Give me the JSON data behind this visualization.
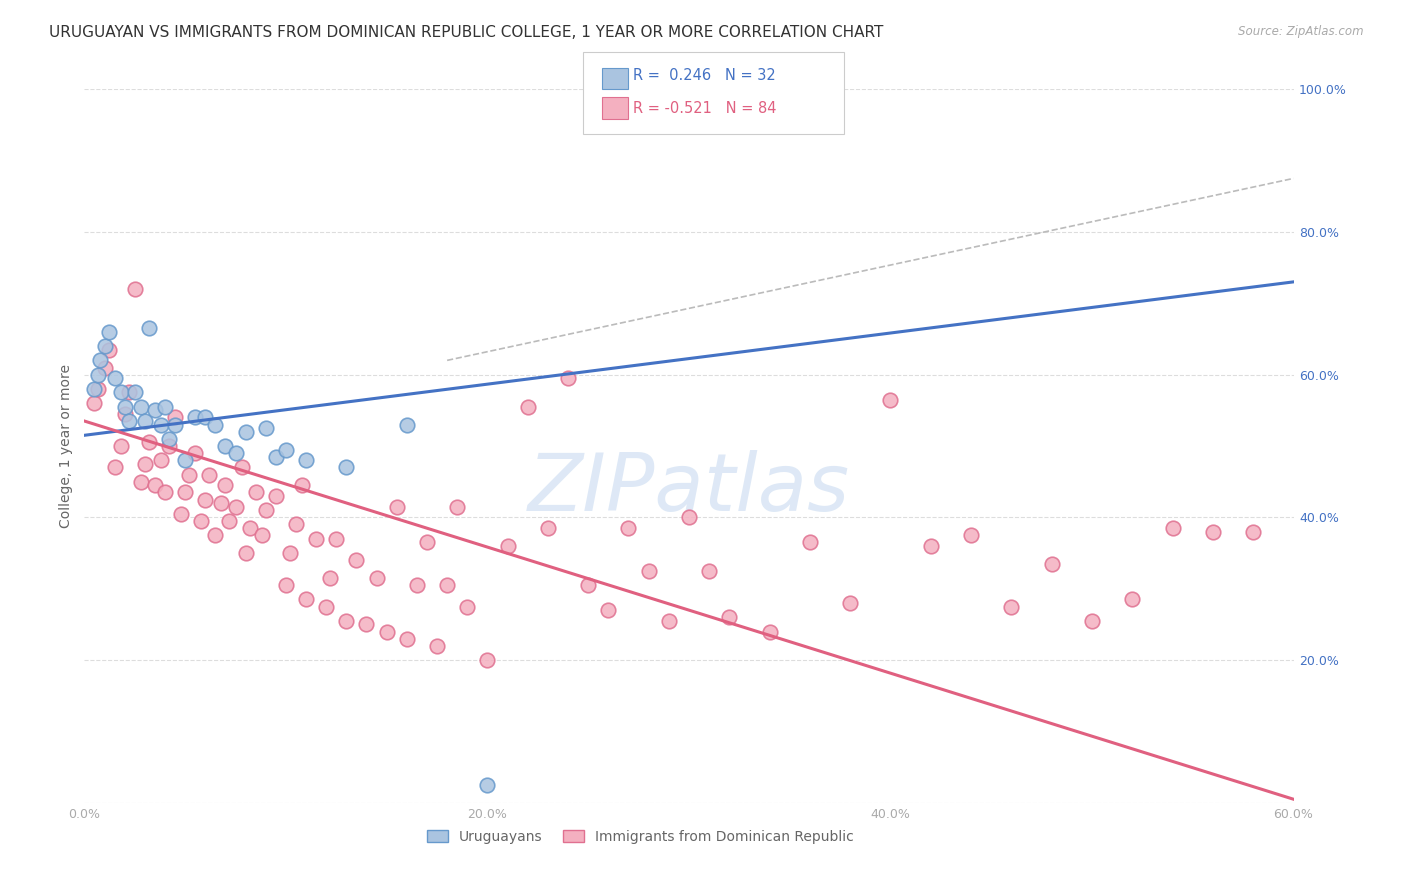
{
  "title": "URUGUAYAN VS IMMIGRANTS FROM DOMINICAN REPUBLIC COLLEGE, 1 YEAR OR MORE CORRELATION CHART",
  "source": "Source: ZipAtlas.com",
  "ylabel": "College, 1 year or more",
  "xlim": [
    0.0,
    0.6
  ],
  "ylim": [
    0.0,
    1.0
  ],
  "xticks": [
    0.0,
    0.1,
    0.2,
    0.3,
    0.4,
    0.5,
    0.6
  ],
  "yticks": [
    0.0,
    0.2,
    0.4,
    0.6,
    0.8,
    1.0
  ],
  "xtick_labels": [
    "0.0%",
    "",
    "20.0%",
    "",
    "40.0%",
    "",
    "60.0%"
  ],
  "ytick_labels_right": [
    "",
    "20.0%",
    "40.0%",
    "60.0%",
    "80.0%",
    "100.0%"
  ],
  "blue_R": "0.246",
  "blue_N": "32",
  "pink_R": "-0.521",
  "pink_N": "84",
  "blue_scatter_x": [
    0.005,
    0.007,
    0.008,
    0.01,
    0.012,
    0.015,
    0.018,
    0.02,
    0.022,
    0.025,
    0.028,
    0.03,
    0.032,
    0.035,
    0.038,
    0.04,
    0.042,
    0.045,
    0.05,
    0.055,
    0.06,
    0.065,
    0.07,
    0.075,
    0.08,
    0.09,
    0.095,
    0.1,
    0.11,
    0.13,
    0.16,
    0.2
  ],
  "blue_scatter_y": [
    0.58,
    0.6,
    0.62,
    0.64,
    0.66,
    0.595,
    0.575,
    0.555,
    0.535,
    0.575,
    0.555,
    0.535,
    0.665,
    0.55,
    0.53,
    0.555,
    0.51,
    0.53,
    0.48,
    0.54,
    0.54,
    0.53,
    0.5,
    0.49,
    0.52,
    0.525,
    0.485,
    0.495,
    0.48,
    0.47,
    0.53,
    0.025
  ],
  "pink_scatter_x": [
    0.005,
    0.007,
    0.01,
    0.012,
    0.015,
    0.018,
    0.02,
    0.022,
    0.025,
    0.028,
    0.03,
    0.032,
    0.035,
    0.038,
    0.04,
    0.042,
    0.045,
    0.048,
    0.05,
    0.052,
    0.055,
    0.058,
    0.06,
    0.062,
    0.065,
    0.068,
    0.07,
    0.072,
    0.075,
    0.078,
    0.08,
    0.082,
    0.085,
    0.088,
    0.09,
    0.095,
    0.1,
    0.102,
    0.105,
    0.108,
    0.11,
    0.115,
    0.12,
    0.122,
    0.125,
    0.13,
    0.135,
    0.14,
    0.145,
    0.15,
    0.155,
    0.16,
    0.165,
    0.17,
    0.175,
    0.18,
    0.185,
    0.19,
    0.2,
    0.21,
    0.22,
    0.23,
    0.24,
    0.25,
    0.26,
    0.27,
    0.28,
    0.29,
    0.3,
    0.31,
    0.32,
    0.34,
    0.36,
    0.38,
    0.4,
    0.42,
    0.44,
    0.46,
    0.48,
    0.5,
    0.52,
    0.54,
    0.56,
    0.58
  ],
  "pink_scatter_y": [
    0.56,
    0.58,
    0.61,
    0.635,
    0.47,
    0.5,
    0.545,
    0.575,
    0.72,
    0.45,
    0.475,
    0.505,
    0.445,
    0.48,
    0.435,
    0.5,
    0.54,
    0.405,
    0.435,
    0.46,
    0.49,
    0.395,
    0.425,
    0.46,
    0.375,
    0.42,
    0.445,
    0.395,
    0.415,
    0.47,
    0.35,
    0.385,
    0.435,
    0.375,
    0.41,
    0.43,
    0.305,
    0.35,
    0.39,
    0.445,
    0.285,
    0.37,
    0.275,
    0.315,
    0.37,
    0.255,
    0.34,
    0.25,
    0.315,
    0.24,
    0.415,
    0.23,
    0.305,
    0.365,
    0.22,
    0.305,
    0.415,
    0.275,
    0.2,
    0.36,
    0.555,
    0.385,
    0.595,
    0.305,
    0.27,
    0.385,
    0.325,
    0.255,
    0.4,
    0.325,
    0.26,
    0.24,
    0.365,
    0.28,
    0.565,
    0.36,
    0.375,
    0.275,
    0.335,
    0.255,
    0.285,
    0.385,
    0.38,
    0.38
  ],
  "blue_line_x": [
    0.0,
    0.6
  ],
  "blue_line_y": [
    0.515,
    0.73
  ],
  "pink_line_x": [
    0.0,
    0.6
  ],
  "pink_line_y": [
    0.535,
    0.005
  ],
  "ref_line_x": [
    0.18,
    0.6
  ],
  "ref_line_y": [
    0.62,
    0.875
  ],
  "blue_scatter_color": "#aac4e0",
  "blue_scatter_edge": "#6699cc",
  "pink_scatter_color": "#f4b0c0",
  "pink_scatter_edge": "#e07090",
  "blue_line_color": "#4472c4",
  "pink_line_color": "#e06080",
  "ref_line_color": "#bbbbbb",
  "grid_color": "#dddddd",
  "bg_color": "#ffffff",
  "title_color": "#333333",
  "label_color": "#666666",
  "tick_color_x": "#aaaaaa",
  "tick_color_y": "#4472c4",
  "watermark_color": "#c8daf0",
  "legend_label1": "Uruguayans",
  "legend_label2": "Immigrants from Dominican Republic"
}
